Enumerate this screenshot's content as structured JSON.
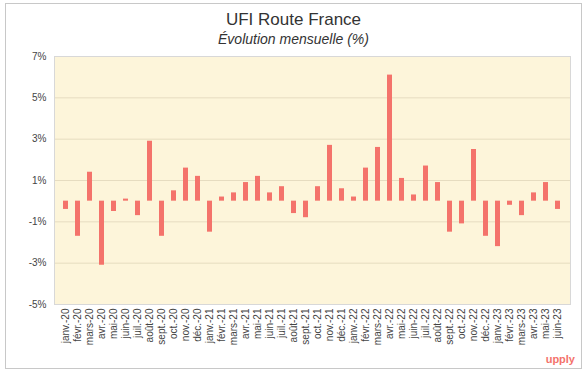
{
  "chart_data": {
    "type": "bar",
    "title": "UFI Route France",
    "subtitle": "Évolution mensuelle (%)",
    "caption": "upply",
    "categories": [
      "janv.-20",
      "févr.-20",
      "mars-20",
      "avr.-20",
      "mai-20",
      "juin-20",
      "juil.-20",
      "août-20",
      "sept.-20",
      "oct.-20",
      "nov.-20",
      "déc.-20",
      "janv.-21",
      "févr.-21",
      "mars-21",
      "avr.-21",
      "mai-21",
      "juin-21",
      "juil.-21",
      "août-21",
      "sept.-21",
      "oct.-21",
      "nov.-21",
      "déc.-21",
      "janv.-22",
      "févr.-22",
      "mars-22",
      "avr.-22",
      "mai-22",
      "juin-22",
      "juil.-22",
      "août-22",
      "sept.-22",
      "oct.-22",
      "nov.-22",
      "déc.-22",
      "janv.-23",
      "févr.-23",
      "mars-23",
      "avr.-23",
      "mai-23",
      "juin-23"
    ],
    "values": [
      -0.4,
      -1.7,
      1.4,
      -3.1,
      -0.5,
      0.1,
      -0.7,
      2.9,
      -1.7,
      0.5,
      1.6,
      1.2,
      -1.5,
      0.2,
      0.4,
      0.9,
      1.2,
      0.4,
      0.7,
      -0.6,
      -0.8,
      0.7,
      2.7,
      0.6,
      0.2,
      1.6,
      2.6,
      6.1,
      1.1,
      0.3,
      1.7,
      0.9,
      -1.5,
      -1.1,
      2.5,
      -1.7,
      -2.2,
      -0.2,
      -0.7,
      0.4,
      0.9,
      -0.4
    ],
    "color": "#f4736b",
    "ylim": [
      -5,
      7
    ],
    "yticks": [
      {
        "value": -5,
        "label": "-5%"
      },
      {
        "value": -3,
        "label": "-3%"
      },
      {
        "value": -1,
        "label": "-1%"
      },
      {
        "value": 1,
        "label": "1%"
      },
      {
        "value": 3,
        "label": "3%"
      },
      {
        "value": 5,
        "label": "5%"
      },
      {
        "value": 7,
        "label": "7%"
      }
    ],
    "grid": true
  }
}
